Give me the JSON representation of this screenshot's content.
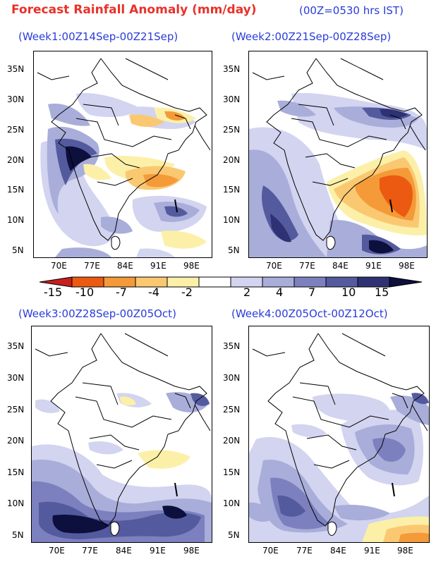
{
  "header": {
    "title": "Forecast Rainfall Anomaly (mm/day)",
    "time_note": "(00Z=0530 hrs IST)"
  },
  "panels": [
    {
      "id": "week1",
      "title": "(Week1:00Z14Sep-00Z21Sep)"
    },
    {
      "id": "week2",
      "title": "(Week2:00Z21Sep-00Z28Sep)"
    },
    {
      "id": "week3",
      "title": "(Week3:00Z28Sep-00Z05Oct)"
    },
    {
      "id": "week4",
      "title": "(Week4:00Z05Oct-00Z12Oct)"
    }
  ],
  "axes": {
    "lat_labels": [
      "35N",
      "30N",
      "25N",
      "20N",
      "15N",
      "10N",
      "5N"
    ],
    "lon_labels": [
      "70E",
      "77E",
      "84E",
      "91E",
      "98E"
    ]
  },
  "colorbar": {
    "labels": [
      "-15",
      "-10",
      "-7",
      "-4",
      "-2",
      "2",
      "4",
      "7",
      "10",
      "15"
    ],
    "colors": [
      "#c81e1e",
      "#ec5a12",
      "#f49a38",
      "#fbc872",
      "#fcf0a8",
      "#ffffff",
      "#d2d4f0",
      "#a9add9",
      "#7c80bf",
      "#545a9e",
      "#2e3274",
      "#0d0f3c"
    ]
  }
}
